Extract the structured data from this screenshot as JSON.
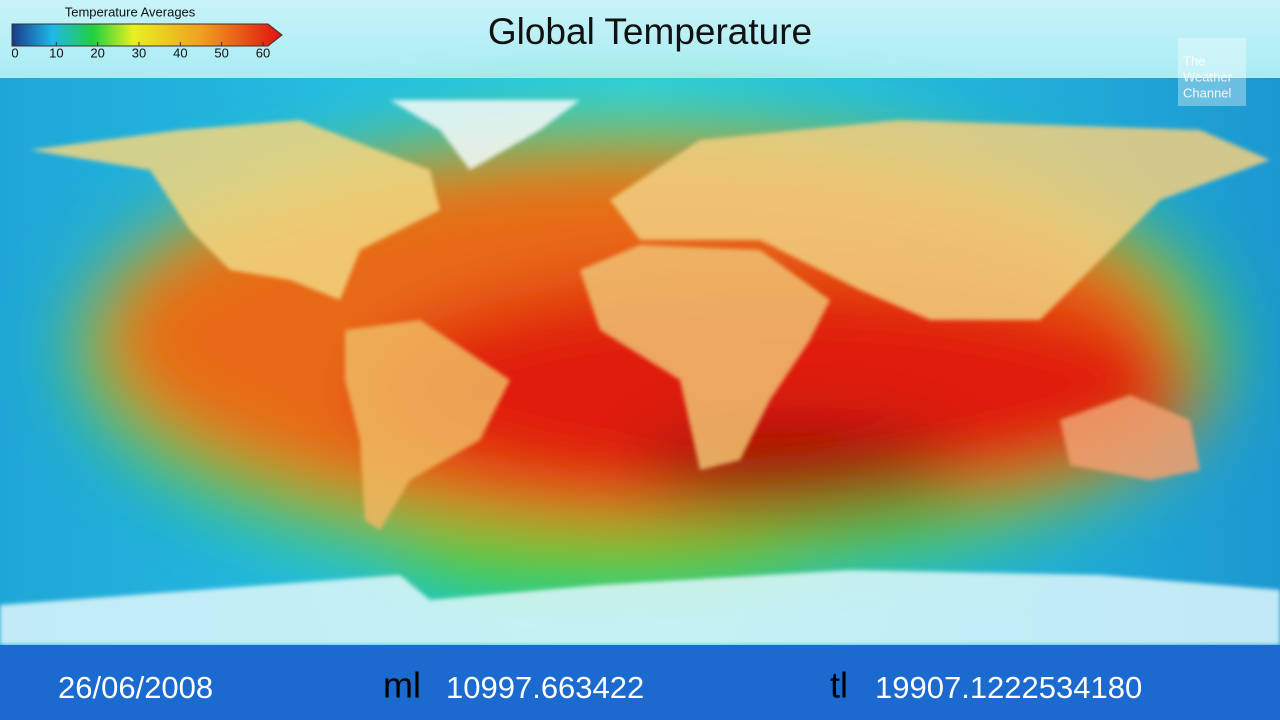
{
  "title": "Global Temperature",
  "legend": {
    "title": "Temperature Averages",
    "ticks": [
      0,
      10,
      20,
      30,
      40,
      50,
      60
    ]
  },
  "logo": {
    "lines": [
      "The",
      "Weather",
      "Channel"
    ]
  },
  "footer": {
    "date": "26/06/2008",
    "ml_label": "ml",
    "ml_value": "10997.663422",
    "tl_label": "tl",
    "tl_value": "19907.1222534180"
  }
}
